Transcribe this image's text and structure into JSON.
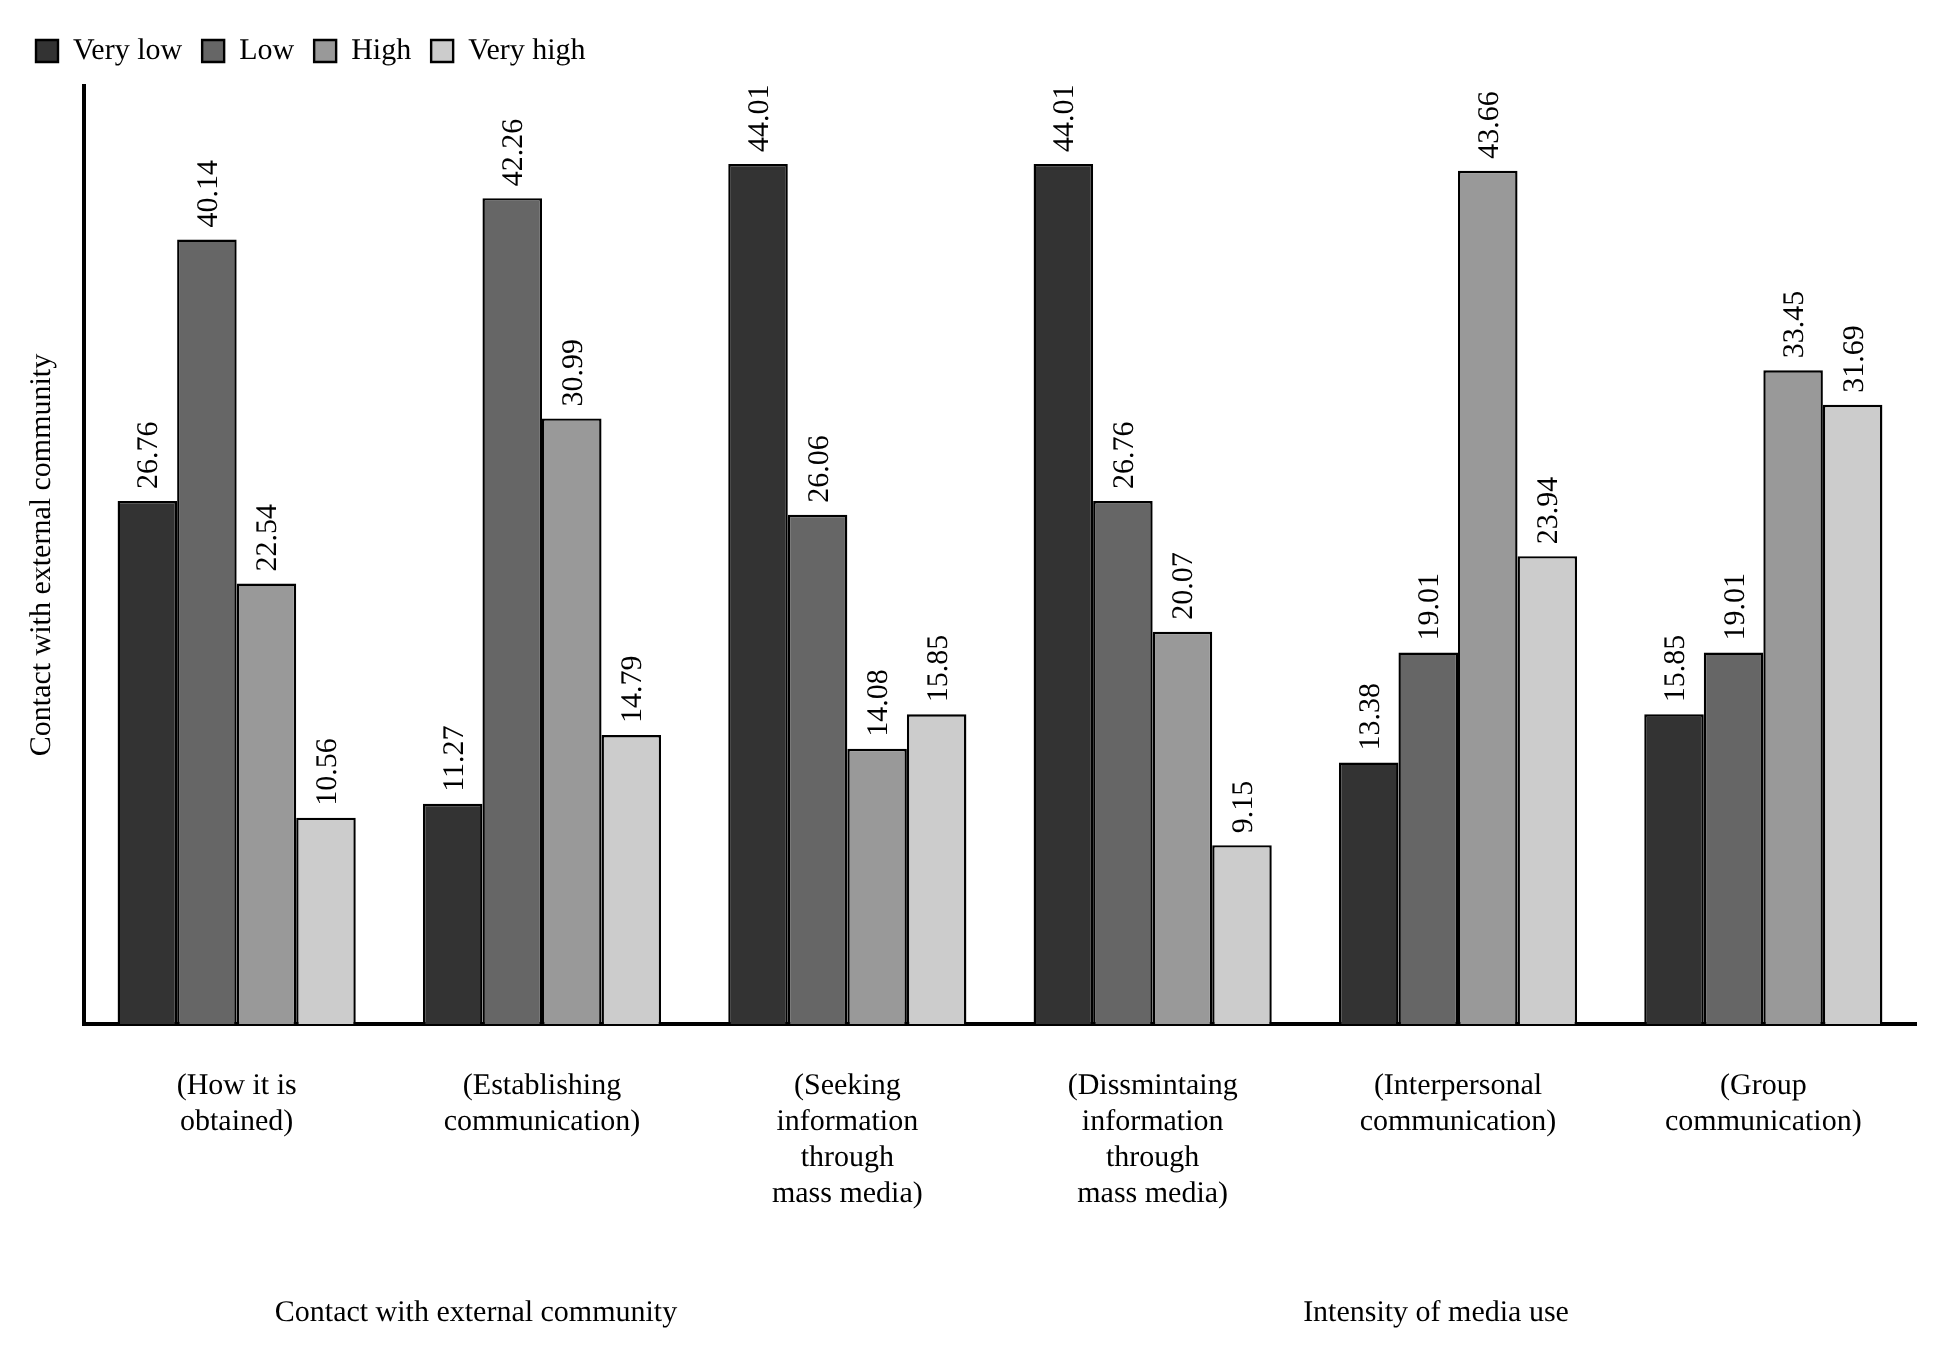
{
  "chart_data": {
    "type": "bar",
    "ylabel": "Contact with external community",
    "categories": [
      "(How it is\nobtained)",
      "(Establishing\ncommunication)",
      "(Seeking\ninformation\nthrough\nmass media)",
      "(Dissmintaing\ninformation\nthrough\nmass media)",
      "(Interpersonal\ncommunication)",
      "(Group\ncommunication)"
    ],
    "series": [
      {
        "name": "Very low",
        "color": "#333333",
        "values": [
          26.76,
          11.27,
          44.01,
          44.01,
          13.38,
          15.85
        ]
      },
      {
        "name": "Low",
        "color": "#666666",
        "values": [
          40.14,
          42.26,
          26.06,
          26.76,
          19.01,
          19.01
        ]
      },
      {
        "name": "High",
        "color": "#999999",
        "values": [
          22.54,
          30.99,
          14.08,
          20.07,
          43.66,
          33.45
        ]
      },
      {
        "name": "Very high",
        "color": "#cccccc",
        "values": [
          10.56,
          14.79,
          15.85,
          9.15,
          23.94,
          31.69
        ]
      }
    ],
    "ylim": [
      0,
      48
    ],
    "data_labels": true,
    "legend": "top left",
    "grid": false,
    "annotations": [
      "Contact with external community",
      "Intensity of media use"
    ]
  }
}
